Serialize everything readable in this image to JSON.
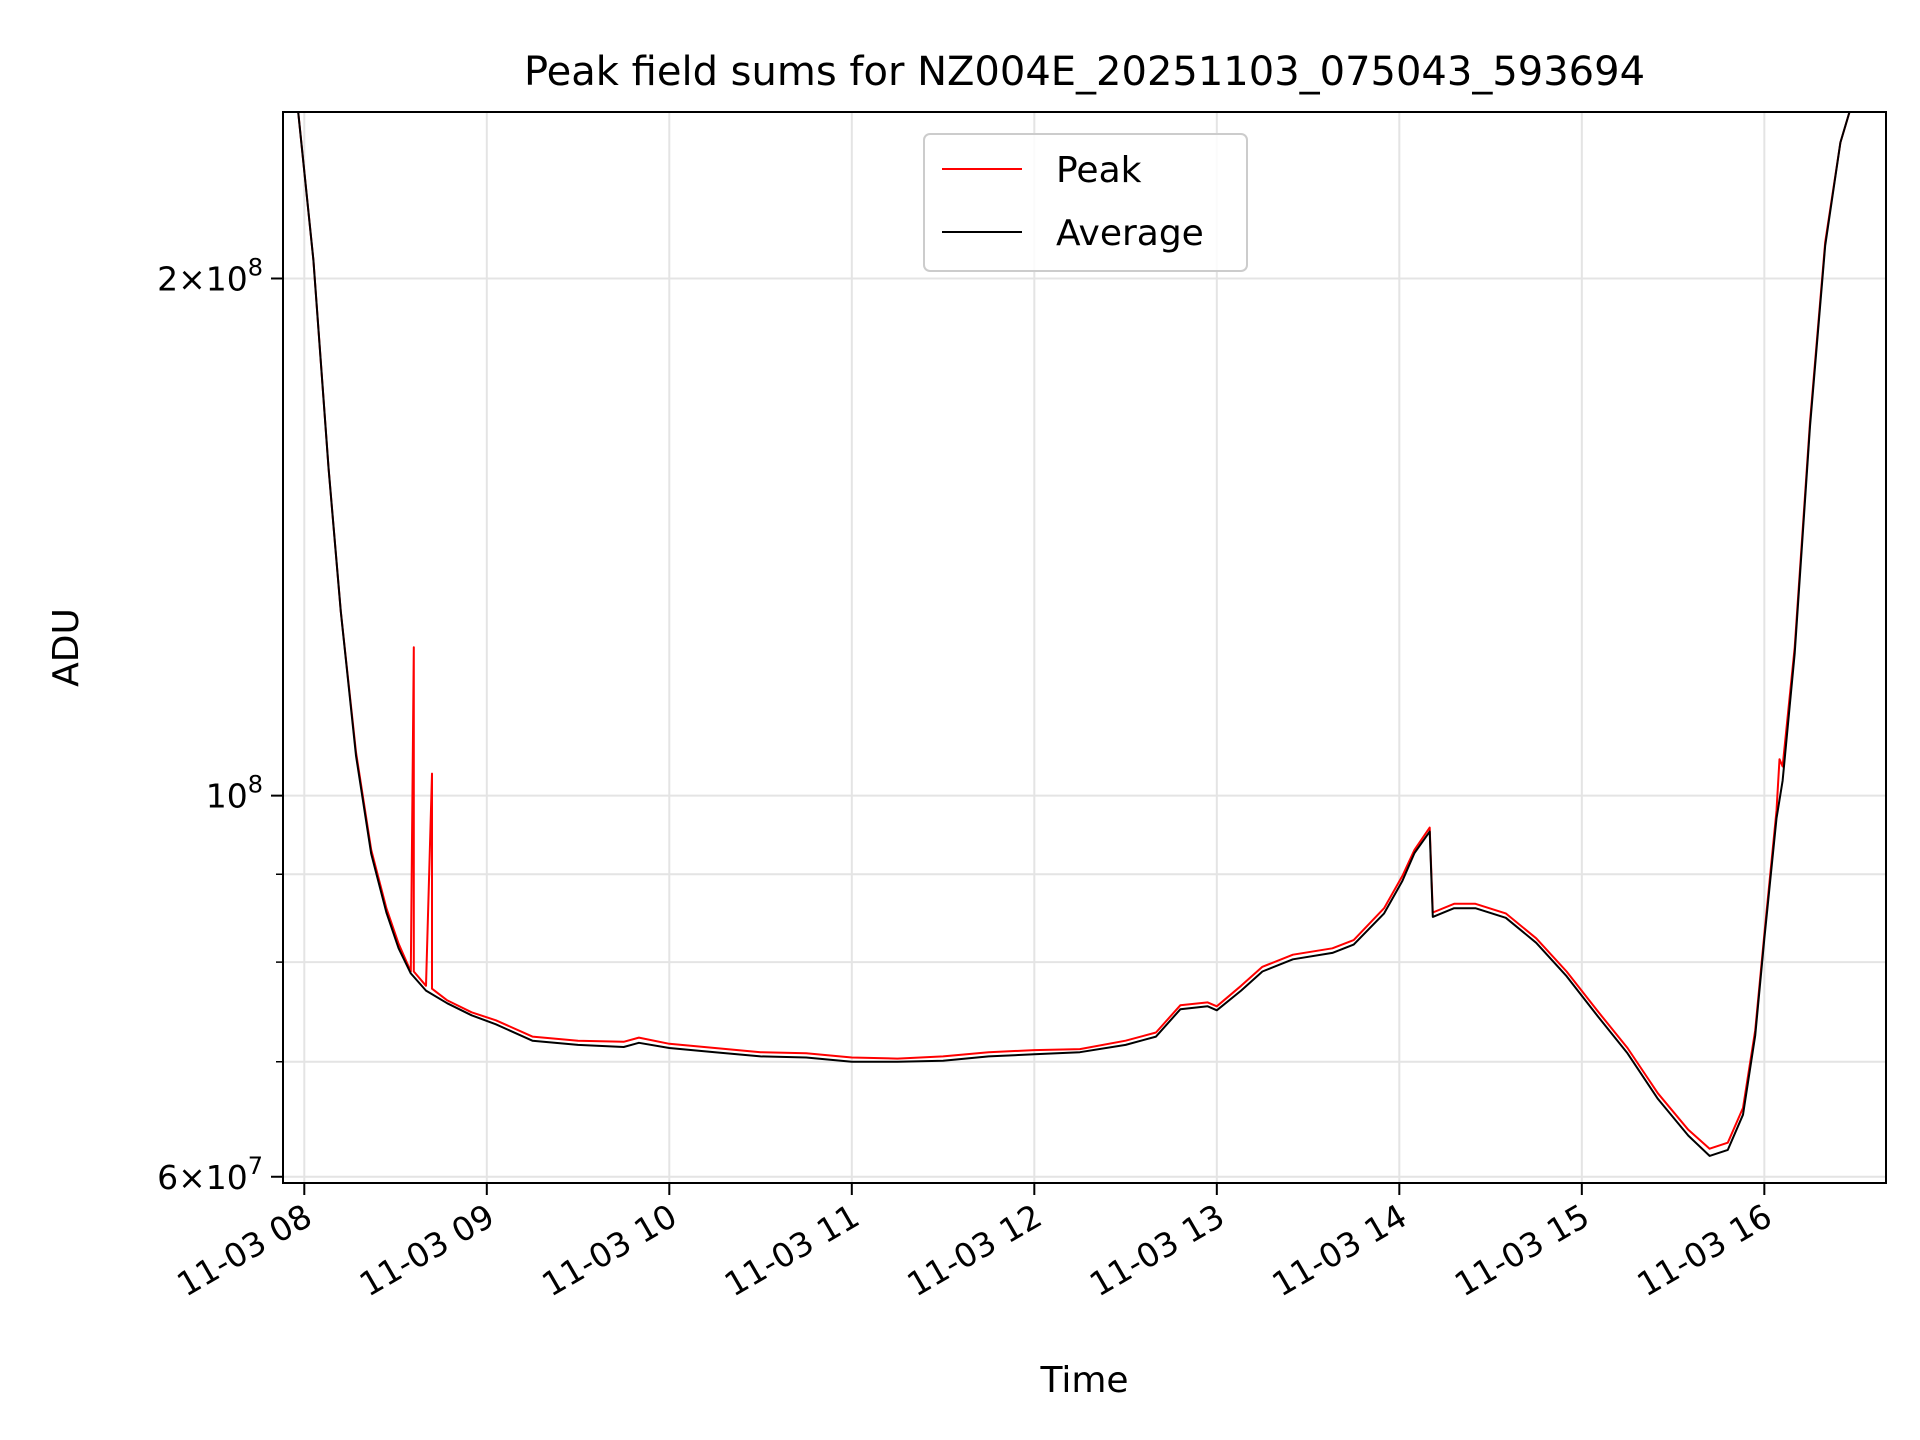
{
  "chart_data": {
    "type": "line",
    "title": "Peak field sums for NZ004E_20251103_075043_593694",
    "xlabel": "Time",
    "ylabel": "ADU",
    "yscale": "log",
    "grid": true,
    "legend_position": "top-center",
    "xlim": [
      "2025-11-03 07:53",
      "2025-11-03 16:40"
    ],
    "ylim": [
      59500000,
      250000000
    ],
    "x_ticks": [
      "11-03 08",
      "11-03 09",
      "11-03 10",
      "11-03 11",
      "11-03 12",
      "11-03 13",
      "11-03 14",
      "11-03 15",
      "11-03 16"
    ],
    "y_ticks": [
      {
        "value": 60000000,
        "base": "6",
        "exp": "7"
      },
      {
        "value": 100000000,
        "base": "",
        "exp": "8"
      },
      {
        "value": 200000000,
        "base": "2",
        "exp": "8"
      }
    ],
    "series": [
      {
        "name": "Peak",
        "color": "#ff0000",
        "points": [
          [
            "07:58",
            250000000
          ],
          [
            "08:03",
            205000000
          ],
          [
            "08:08",
            155000000
          ],
          [
            "08:12",
            128000000
          ],
          [
            "08:17",
            106000000
          ],
          [
            "08:22",
            93000000
          ],
          [
            "08:27",
            86000000
          ],
          [
            "08:31",
            82000000
          ],
          [
            "08:35",
            79000000
          ],
          [
            "08:36",
            122000000
          ],
          [
            "08:36",
            79000000
          ],
          [
            "08:40",
            77500000
          ],
          [
            "08:42",
            103000000
          ],
          [
            "08:42",
            77200000
          ],
          [
            "08:47",
            76000000
          ],
          [
            "08:55",
            74800000
          ],
          [
            "09:03",
            74000000
          ],
          [
            "09:15",
            72400000
          ],
          [
            "09:30",
            72000000
          ],
          [
            "09:45",
            71900000
          ],
          [
            "09:50",
            72300000
          ],
          [
            "10:00",
            71700000
          ],
          [
            "10:15",
            71300000
          ],
          [
            "10:30",
            70900000
          ],
          [
            "10:45",
            70800000
          ],
          [
            "11:00",
            70400000
          ],
          [
            "11:15",
            70300000
          ],
          [
            "11:30",
            70500000
          ],
          [
            "11:45",
            70900000
          ],
          [
            "12:00",
            71100000
          ],
          [
            "12:15",
            71200000
          ],
          [
            "12:30",
            72000000
          ],
          [
            "12:40",
            72800000
          ],
          [
            "12:48",
            75500000
          ],
          [
            "12:57",
            75800000
          ],
          [
            "13:00",
            75400000
          ],
          [
            "13:08",
            77500000
          ],
          [
            "13:15",
            79500000
          ],
          [
            "13:25",
            80800000
          ],
          [
            "13:38",
            81500000
          ],
          [
            "13:45",
            82400000
          ],
          [
            "13:55",
            86000000
          ],
          [
            "14:01",
            89800000
          ],
          [
            "14:05",
            93000000
          ],
          [
            "14:10",
            95800000
          ],
          [
            "14:11",
            85500000
          ],
          [
            "14:18",
            86500000
          ],
          [
            "14:25",
            86500000
          ],
          [
            "14:35",
            85400000
          ],
          [
            "14:45",
            82600000
          ],
          [
            "14:55",
            79000000
          ],
          [
            "15:05",
            75000000
          ],
          [
            "15:15",
            71300000
          ],
          [
            "15:25",
            67100000
          ],
          [
            "15:35",
            63900000
          ],
          [
            "15:42",
            62300000
          ],
          [
            "15:48",
            62800000
          ],
          [
            "15:53",
            65800000
          ],
          [
            "15:57",
            73000000
          ],
          [
            "16:00",
            83000000
          ],
          [
            "16:04",
            98000000
          ],
          [
            "16:05",
            105000000
          ],
          [
            "16:06",
            104000000
          ],
          [
            "16:10",
            122000000
          ],
          [
            "16:15",
            165000000
          ],
          [
            "16:20",
            210000000
          ],
          [
            "16:25",
            240000000
          ],
          [
            "16:28",
            250000000
          ]
        ]
      },
      {
        "name": "Average",
        "color": "#000000",
        "points": [
          [
            "07:58",
            250000000
          ],
          [
            "08:03",
            205000000
          ],
          [
            "08:08",
            155000000
          ],
          [
            "08:12",
            128000000
          ],
          [
            "08:17",
            105500000
          ],
          [
            "08:22",
            92500000
          ],
          [
            "08:27",
            85500000
          ],
          [
            "08:31",
            81500000
          ],
          [
            "08:35",
            78800000
          ],
          [
            "08:40",
            77000000
          ],
          [
            "08:47",
            75700000
          ],
          [
            "08:55",
            74500000
          ],
          [
            "09:03",
            73600000
          ],
          [
            "09:15",
            72000000
          ],
          [
            "09:30",
            71600000
          ],
          [
            "09:45",
            71400000
          ],
          [
            "09:50",
            71800000
          ],
          [
            "10:00",
            71300000
          ],
          [
            "10:15",
            70900000
          ],
          [
            "10:30",
            70500000
          ],
          [
            "10:45",
            70400000
          ],
          [
            "11:00",
            70000000
          ],
          [
            "11:15",
            70000000
          ],
          [
            "11:30",
            70100000
          ],
          [
            "11:45",
            70500000
          ],
          [
            "12:00",
            70700000
          ],
          [
            "12:15",
            70900000
          ],
          [
            "12:30",
            71600000
          ],
          [
            "12:40",
            72400000
          ],
          [
            "12:48",
            75100000
          ],
          [
            "12:57",
            75400000
          ],
          [
            "13:00",
            75000000
          ],
          [
            "13:08",
            77000000
          ],
          [
            "13:15",
            79000000
          ],
          [
            "13:25",
            80300000
          ],
          [
            "13:38",
            81000000
          ],
          [
            "13:45",
            81900000
          ],
          [
            "13:55",
            85400000
          ],
          [
            "14:01",
            89200000
          ],
          [
            "14:05",
            92600000
          ],
          [
            "14:10",
            95300000
          ],
          [
            "14:11",
            85000000
          ],
          [
            "14:18",
            86000000
          ],
          [
            "14:25",
            86000000
          ],
          [
            "14:35",
            84900000
          ],
          [
            "14:45",
            82100000
          ],
          [
            "14:55",
            78500000
          ],
          [
            "15:05",
            74500000
          ],
          [
            "15:15",
            70800000
          ],
          [
            "15:25",
            66600000
          ],
          [
            "15:35",
            63400000
          ],
          [
            "15:42",
            61700000
          ],
          [
            "15:48",
            62200000
          ],
          [
            "15:53",
            65200000
          ],
          [
            "15:57",
            72500000
          ],
          [
            "16:00",
            82500000
          ],
          [
            "16:04",
            97000000
          ],
          [
            "16:06",
            102000000
          ],
          [
            "16:10",
            121000000
          ],
          [
            "16:15",
            164000000
          ],
          [
            "16:20",
            209000000
          ],
          [
            "16:25",
            240000000
          ],
          [
            "16:28",
            250000000
          ]
        ]
      }
    ]
  }
}
